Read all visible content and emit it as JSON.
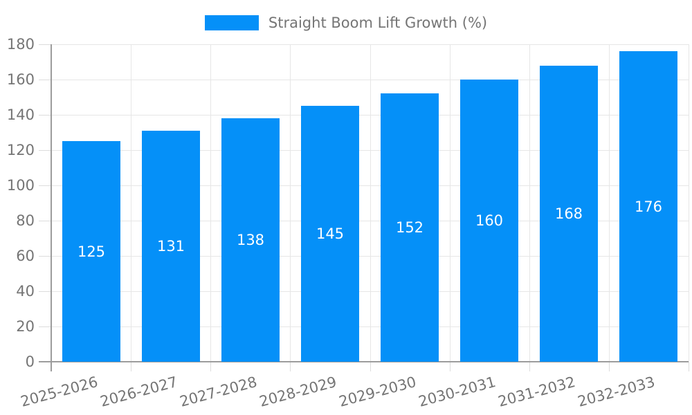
{
  "chart_data": {
    "type": "bar",
    "legend": "Straight Boom Lift Growth (%)",
    "categories": [
      "2025-2026",
      "2026-2027",
      "2027-2028",
      "2028-2029",
      "2029-2030",
      "2030-2031",
      "2031-2032",
      "2032-2033"
    ],
    "values": [
      125,
      131,
      138,
      145,
      152,
      160,
      168,
      176
    ],
    "ylim": [
      0,
      180
    ],
    "ytick_step": 20,
    "grid": true,
    "legend_position": "top",
    "bar_label_position": "center",
    "colors": {
      "bar": "#0590f8",
      "bar_label": "#ffffff",
      "grid": "#e6e6e6",
      "axis": "#9c9c9c",
      "tick_label": "#757575",
      "background": "#ffffff"
    }
  }
}
